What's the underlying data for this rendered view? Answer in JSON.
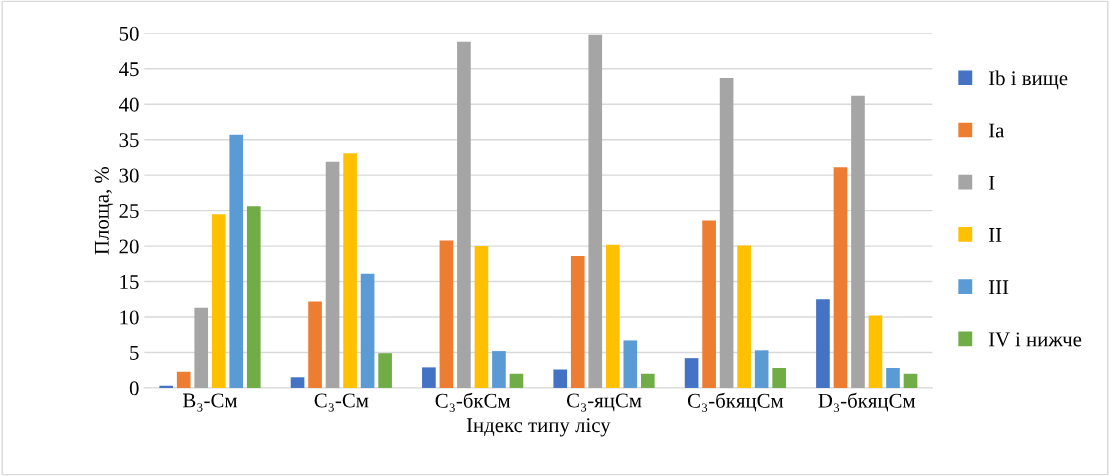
{
  "chart_data": {
    "type": "bar",
    "xlabel": "Індекс типу лісу",
    "ylabel": "Площа, %",
    "categories": [
      "В₃-См",
      "С₃-См",
      "С₃-бкСм",
      "С₃-яцСм",
      "С₃-бкяцСм",
      "D₃-бкяцСм"
    ],
    "series": [
      {
        "name": "Ib і вище",
        "color": "#4472c4",
        "values": [
          0.3,
          1.5,
          2.9,
          2.6,
          4.2,
          12.5
        ]
      },
      {
        "name": "Ia",
        "color": "#ed7d31",
        "values": [
          2.3,
          12.2,
          20.8,
          18.6,
          23.6,
          31.1
        ]
      },
      {
        "name": "I",
        "color": "#a5a5a5",
        "values": [
          11.3,
          31.9,
          48.8,
          49.8,
          43.7,
          41.2
        ]
      },
      {
        "name": "II",
        "color": "#ffc000",
        "values": [
          24.5,
          33.1,
          20.0,
          20.2,
          20.1,
          10.2
        ]
      },
      {
        "name": "III",
        "color": "#5b9bd5",
        "values": [
          35.7,
          16.1,
          5.2,
          6.7,
          5.3,
          2.8
        ]
      },
      {
        "name": "IV і нижче",
        "color": "#70ad47",
        "values": [
          25.6,
          4.9,
          2.0,
          2.0,
          2.8,
          2.0
        ]
      }
    ],
    "ylim": [
      0,
      50
    ],
    "yticks": [
      0,
      5,
      10,
      15,
      20,
      25,
      30,
      35,
      40,
      45,
      50
    ],
    "grid": "y",
    "legend": "right"
  }
}
